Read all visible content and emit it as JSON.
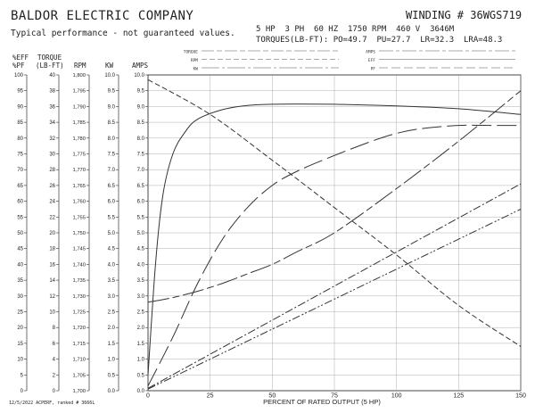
{
  "header": {
    "company": "BALDOR ELECTRIC COMPANY",
    "disclaimer": "Typical performance - not guaranteed values.",
    "winding": "WINDING # 36WGS719",
    "ratings": "5 HP  3 PH  60 HZ  1750 RPM  460 V  3646M",
    "torques": "TORQUES(LB-FT): PO=49.7  PU=27.7  LR=32.3  LRA=48.3"
  },
  "legend": {
    "left": [
      "TORQUE",
      "RPM",
      "KW"
    ],
    "right": [
      "AMPS",
      "EFF",
      "PF"
    ]
  },
  "column_headers": {
    "eff": "%EFF",
    "pf": "%PF",
    "torque": "TORQUE",
    "torque_unit": "(LB-FT)",
    "rpm": "RPM",
    "kw": "KW",
    "amps": "AMPS"
  },
  "footnote": "12/5/2022 ACPERF, ranked # 3666L",
  "chart_data": {
    "type": "line",
    "xlabel": "PERCENT OF RATED OUTPUT (5 HP)",
    "x_ticks": [
      0,
      25,
      50,
      75,
      100,
      125,
      150
    ],
    "xlim": [
      0,
      150
    ],
    "grid": true,
    "axes": {
      "eff_pf": {
        "ticks": [
          100,
          95,
          90,
          85,
          80,
          75,
          70,
          65,
          60,
          55,
          50,
          45,
          40,
          35,
          30,
          25,
          20,
          15,
          10,
          5,
          0
        ],
        "range": [
          0,
          100
        ]
      },
      "torque": {
        "ticks": [
          40,
          38,
          36,
          34,
          32,
          30,
          28,
          26,
          24,
          22,
          20,
          18,
          16,
          14,
          12,
          10,
          8,
          6,
          4,
          2,
          0
        ],
        "range": [
          0,
          40
        ]
      },
      "rpm": {
        "ticks": [
          "1,800",
          "1,795",
          "1,790",
          "1,785",
          "1,780",
          "1,775",
          "1,770",
          "1,765",
          "1,760",
          "1,755",
          "1,750",
          "1,745",
          "1,740",
          "1,735",
          "1,730",
          "1,725",
          "1,720",
          "1,715",
          "1,710",
          "1,705",
          "1,700"
        ],
        "range": [
          1700,
          1800
        ]
      },
      "kw": {
        "ticks": [
          "10.0",
          "9.5",
          "9.0",
          "8.5",
          "8.0",
          "7.5",
          "7.0",
          "6.5",
          "6.0",
          "5.5",
          "5.0",
          "4.5",
          "4.0",
          "3.5",
          "3.0",
          "2.5",
          "2.0",
          "1.5",
          "1.0",
          "0.5",
          "0.0"
        ],
        "range": [
          0,
          10
        ]
      },
      "amps": {
        "ticks": [
          "10.0",
          "9.5",
          "9.0",
          "8.5",
          "8.0",
          "7.5",
          "7.0",
          "6.5",
          "6.0",
          "5.5",
          "5.0",
          "4.5",
          "4.0",
          "3.5",
          "3.0",
          "2.5",
          "2.0",
          "1.5",
          "1.0",
          "0.5",
          "0.0"
        ],
        "range": [
          0,
          10
        ]
      }
    },
    "series": [
      {
        "name": "EFF",
        "axis": "eff_pf",
        "dash": "solid",
        "x": [
          0,
          3,
          6,
          10,
          15,
          20,
          30,
          40,
          50,
          60,
          75,
          100,
          125,
          150
        ],
        "y": [
          5,
          40,
          62,
          75,
          82,
          86,
          89,
          90.3,
          90.7,
          90.8,
          90.7,
          90.2,
          89.3,
          87.5
        ]
      },
      {
        "name": "PF",
        "axis": "eff_pf",
        "dash": "long",
        "x": [
          0,
          10,
          20,
          30,
          40,
          50,
          60,
          75,
          90,
          100,
          110,
          125,
          140,
          150
        ],
        "y": [
          1.5,
          17,
          34,
          48,
          58,
          65,
          69.5,
          74.5,
          79,
          81.5,
          83,
          84,
          84,
          84
        ]
      },
      {
        "name": "RPM",
        "axis": "rpm",
        "dash": "dashed",
        "x": [
          0,
          25,
          50,
          75,
          100,
          125,
          150
        ],
        "y": [
          1798.5,
          1787.5,
          1773,
          1758,
          1743,
          1727,
          1714
        ]
      },
      {
        "name": "AMPS",
        "axis": "amps",
        "dash": "longshort",
        "x": [
          0,
          10,
          20,
          30,
          40,
          50,
          60,
          75,
          100,
          125,
          150
        ],
        "y": [
          2.8,
          2.95,
          3.15,
          3.4,
          3.7,
          4.0,
          4.4,
          5.0,
          6.4,
          7.9,
          9.5
        ]
      },
      {
        "name": "TORQUE",
        "axis": "torque",
        "dash": "dashdot",
        "x": [
          0,
          150
        ],
        "y": [
          0.3,
          26.2
        ]
      },
      {
        "name": "KW",
        "axis": "kw",
        "dash": "dashdotdot",
        "x": [
          0,
          150
        ],
        "y": [
          0.05,
          5.75
        ]
      }
    ]
  }
}
